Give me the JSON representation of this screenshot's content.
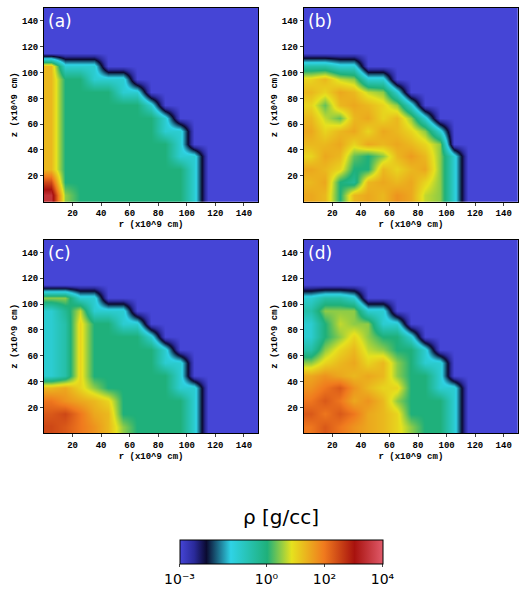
{
  "chart_data": {
    "type": "heatmap",
    "log": true,
    "grid": false,
    "xlabel": "r (x10^9 cm)",
    "ylabel": "z (x10^9 cm)",
    "xlim": [
      0,
      150
    ],
    "ylim": [
      0,
      150
    ],
    "xticks": [
      20,
      40,
      60,
      80,
      100,
      120,
      140
    ],
    "yticks": [
      20,
      40,
      60,
      80,
      100,
      120,
      140
    ],
    "r": [
      5,
      15,
      25,
      35,
      45,
      55,
      65,
      75,
      85,
      95,
      105,
      115,
      125,
      135,
      145
    ],
    "z": [
      5,
      15,
      25,
      35,
      45,
      55,
      65,
      75,
      85,
      95,
      105,
      115,
      125,
      135,
      145
    ],
    "colorbar": {
      "title": "ρ [g/cc]",
      "range": [
        0.001,
        10000
      ],
      "ticks": [
        {
          "value": 0.001,
          "label": "10⁻³"
        },
        {
          "value": 1,
          "label": "10⁰"
        },
        {
          "value": 100,
          "label": "10²"
        },
        {
          "value": 10000,
          "label": "10⁴"
        }
      ]
    },
    "panels": [
      {
        "label": "(a)",
        "cells": [
          [
            3000,
            3,
            1,
            1,
            1,
            1,
            1,
            1,
            1,
            1,
            0.1,
            0.001,
            0.001,
            0.001,
            0.001
          ],
          [
            300,
            1,
            1,
            1,
            1,
            1,
            1,
            1,
            1,
            1,
            0.1,
            0.001,
            0.001,
            0.001,
            0.001
          ],
          [
            20,
            1,
            1,
            1,
            1,
            1,
            1,
            1,
            1,
            1,
            0.1,
            0.001,
            0.001,
            0.001,
            0.001
          ],
          [
            20,
            1,
            1,
            1,
            1,
            1,
            1,
            1,
            1,
            0.1,
            0.1,
            0.001,
            0.001,
            0.001,
            0.001
          ],
          [
            20,
            1,
            1,
            1,
            1,
            1,
            1,
            1,
            1,
            0.1,
            0.001,
            0.001,
            0.001,
            0.001,
            0.001
          ],
          [
            20,
            1,
            1,
            1,
            1,
            1,
            1,
            1,
            0.1,
            0.1,
            0.001,
            0.001,
            0.001,
            0.001,
            0.001
          ],
          [
            20,
            1,
            1,
            1,
            1,
            1,
            1,
            1,
            0.1,
            0.001,
            0.001,
            0.001,
            0.001,
            0.001,
            0.001
          ],
          [
            20,
            1,
            1,
            1,
            1,
            1,
            1,
            0.1,
            0.001,
            0.001,
            0.001,
            0.001,
            0.001,
            0.001,
            0.001
          ],
          [
            20,
            1,
            1,
            1,
            1,
            0.1,
            0.1,
            0.001,
            0.001,
            0.001,
            0.001,
            0.001,
            0.001,
            0.001,
            0.001
          ],
          [
            20,
            1,
            1,
            0.1,
            0.1,
            0.1,
            0.001,
            0.001,
            0.001,
            0.001,
            0.001,
            0.001,
            0.001,
            0.001,
            0.001
          ],
          [
            20,
            0.1,
            0.1,
            0.1,
            0.001,
            0.001,
            0.001,
            0.001,
            0.001,
            0.001,
            0.001,
            0.001,
            0.001,
            0.001,
            0.001
          ],
          [
            0.001,
            0.001,
            0.001,
            0.001,
            0.001,
            0.001,
            0.001,
            0.001,
            0.001,
            0.001,
            0.001,
            0.001,
            0.001,
            0.001,
            0.001
          ],
          [
            0.001,
            0.001,
            0.001,
            0.001,
            0.001,
            0.001,
            0.001,
            0.001,
            0.001,
            0.001,
            0.001,
            0.001,
            0.001,
            0.001,
            0.001
          ],
          [
            0.001,
            0.001,
            0.001,
            0.001,
            0.001,
            0.001,
            0.001,
            0.001,
            0.001,
            0.001,
            0.001,
            0.001,
            0.001,
            0.001,
            0.001
          ],
          [
            0.001,
            0.001,
            0.001,
            0.001,
            0.001,
            0.001,
            0.001,
            0.001,
            0.001,
            0.001,
            0.001,
            0.001,
            0.001,
            0.001,
            0.001
          ]
        ]
      },
      {
        "label": "(b)",
        "cells": [
          [
            30,
            20,
            1,
            20,
            30,
            20,
            50,
            30,
            5,
            3,
            0.1,
            0.001,
            0.001,
            0.001,
            0.001
          ],
          [
            20,
            30,
            1,
            0.5,
            20,
            30,
            20,
            30,
            10,
            3,
            0.1,
            0.001,
            0.001,
            0.001,
            0.001
          ],
          [
            30,
            20,
            10,
            1,
            1,
            20,
            10,
            20,
            30,
            3,
            0.1,
            0.001,
            0.001,
            0.001,
            0.001
          ],
          [
            10,
            30,
            20,
            2,
            1,
            3,
            20,
            40,
            20,
            3,
            0.1,
            0.001,
            0.001,
            0.001,
            0.001
          ],
          [
            20,
            20,
            30,
            10,
            30,
            20,
            30,
            20,
            10,
            3,
            0.001,
            0.001,
            0.001,
            0.001,
            0.001
          ],
          [
            30,
            10,
            20,
            30,
            10,
            30,
            20,
            10,
            3,
            0.1,
            0.001,
            0.001,
            0.001,
            0.001,
            0.001
          ],
          [
            20,
            5,
            2,
            20,
            30,
            10,
            20,
            3,
            0.1,
            0.001,
            0.001,
            0.001,
            0.001,
            0.001,
            0.001
          ],
          [
            10,
            2,
            20,
            30,
            20,
            10,
            3,
            0.1,
            0.001,
            0.001,
            0.001,
            0.001,
            0.001,
            0.001,
            0.001
          ],
          [
            20,
            10,
            30,
            20,
            5,
            3,
            0.1,
            0.001,
            0.001,
            0.001,
            0.001,
            0.001,
            0.001,
            0.001,
            0.001
          ],
          [
            10,
            20,
            5,
            3,
            0.1,
            0.1,
            0.001,
            0.001,
            0.001,
            0.001,
            0.001,
            0.001,
            0.001,
            0.001,
            0.001
          ],
          [
            0.3,
            0.3,
            0.1,
            0.1,
            0.001,
            0.001,
            0.001,
            0.001,
            0.001,
            0.001,
            0.001,
            0.001,
            0.001,
            0.001,
            0.001
          ],
          [
            0.001,
            0.001,
            0.001,
            0.001,
            0.001,
            0.001,
            0.001,
            0.001,
            0.001,
            0.001,
            0.001,
            0.001,
            0.001,
            0.001,
            0.001
          ],
          [
            0.001,
            0.001,
            0.001,
            0.001,
            0.001,
            0.001,
            0.001,
            0.001,
            0.001,
            0.001,
            0.001,
            0.001,
            0.001,
            0.001,
            0.001
          ],
          [
            0.001,
            0.001,
            0.001,
            0.001,
            0.001,
            0.001,
            0.001,
            0.001,
            0.001,
            0.001,
            0.001,
            0.001,
            0.001,
            0.001,
            0.001
          ],
          [
            0.001,
            0.001,
            0.001,
            0.001,
            0.001,
            0.001,
            0.001,
            0.001,
            0.001,
            0.001,
            0.001,
            0.001,
            0.001,
            0.001,
            0.001
          ]
        ]
      },
      {
        "label": "(c)",
        "cells": [
          [
            300,
            200,
            100,
            50,
            20,
            3,
            1,
            1,
            1,
            1,
            0.1,
            0.001,
            0.001,
            0.001,
            0.001
          ],
          [
            200,
            300,
            100,
            30,
            20,
            1,
            1,
            1,
            1,
            1,
            0.1,
            0.001,
            0.001,
            0.001,
            0.001
          ],
          [
            100,
            50,
            30,
            20,
            10,
            1,
            1,
            1,
            1,
            1,
            0.1,
            0.001,
            0.001,
            0.001,
            0.001
          ],
          [
            20,
            30,
            10,
            3,
            1,
            1,
            1,
            1,
            1,
            0.1,
            0.1,
            0.001,
            0.001,
            0.001,
            0.001
          ],
          [
            0.1,
            0.3,
            10,
            1,
            1,
            1,
            1,
            1,
            1,
            0.1,
            0.001,
            0.001,
            0.001,
            0.001,
            0.001
          ],
          [
            0.1,
            0.3,
            10,
            1,
            1,
            1,
            1,
            1,
            0.1,
            0.1,
            0.001,
            0.001,
            0.001,
            0.001,
            0.001
          ],
          [
            0.1,
            0.3,
            10,
            1,
            1,
            1,
            1,
            1,
            0.1,
            0.001,
            0.001,
            0.001,
            0.001,
            0.001,
            0.001
          ],
          [
            0.1,
            0.3,
            10,
            1,
            1,
            1,
            1,
            0.1,
            0.001,
            0.001,
            0.001,
            0.001,
            0.001,
            0.001,
            0.001
          ],
          [
            0.1,
            0.3,
            10,
            1,
            1,
            0.1,
            0.1,
            0.001,
            0.001,
            0.001,
            0.001,
            0.001,
            0.001,
            0.001,
            0.001
          ],
          [
            0.1,
            0.5,
            5,
            0.1,
            0.1,
            0.1,
            0.001,
            0.001,
            0.001,
            0.001,
            0.001,
            0.001,
            0.001,
            0.001,
            0.001
          ],
          [
            3,
            3,
            0.1,
            0.1,
            0.001,
            0.001,
            0.001,
            0.001,
            0.001,
            0.001,
            0.001,
            0.001,
            0.001,
            0.001,
            0.001
          ],
          [
            0.001,
            0.001,
            0.001,
            0.001,
            0.001,
            0.001,
            0.001,
            0.001,
            0.001,
            0.001,
            0.001,
            0.001,
            0.001,
            0.001,
            0.001
          ],
          [
            0.001,
            0.001,
            0.001,
            0.001,
            0.001,
            0.001,
            0.001,
            0.001,
            0.001,
            0.001,
            0.001,
            0.001,
            0.001,
            0.001,
            0.001
          ],
          [
            0.001,
            0.001,
            0.001,
            0.001,
            0.001,
            0.001,
            0.001,
            0.001,
            0.001,
            0.001,
            0.001,
            0.001,
            0.001,
            0.001,
            0.001
          ],
          [
            0.001,
            0.001,
            0.001,
            0.001,
            0.001,
            0.001,
            0.001,
            0.001,
            0.001,
            0.001,
            0.001,
            0.001,
            0.001,
            0.001,
            0.001
          ]
        ]
      },
      {
        "label": "(d)",
        "cells": [
          [
            100,
            200,
            100,
            50,
            30,
            20,
            10,
            3,
            1,
            1,
            0.1,
            0.001,
            0.001,
            0.001,
            0.001
          ],
          [
            200,
            100,
            200,
            100,
            30,
            20,
            10,
            1,
            1,
            1,
            0.1,
            0.001,
            0.001,
            0.001,
            0.001
          ],
          [
            100,
            200,
            100,
            30,
            50,
            20,
            3,
            1,
            1,
            1,
            0.1,
            0.001,
            0.001,
            0.001,
            0.001
          ],
          [
            50,
            100,
            200,
            50,
            20,
            10,
            10,
            1,
            1,
            0.1,
            0.1,
            0.001,
            0.001,
            0.001,
            0.001
          ],
          [
            30,
            50,
            30,
            20,
            30,
            20,
            3,
            1,
            1,
            0.1,
            0.001,
            0.001,
            0.001,
            0.001,
            0.001
          ],
          [
            3,
            10,
            20,
            30,
            10,
            20,
            3,
            1,
            0.1,
            0.1,
            0.001,
            0.001,
            0.001,
            0.001,
            0.001
          ],
          [
            0.3,
            3,
            10,
            20,
            5,
            3,
            1,
            1,
            0.1,
            0.001,
            0.001,
            0.001,
            0.001,
            0.001,
            0.001
          ],
          [
            0.1,
            1,
            3,
            10,
            3,
            1,
            1,
            0.1,
            0.001,
            0.001,
            0.001,
            0.001,
            0.001,
            0.001,
            0.001
          ],
          [
            0.1,
            1,
            5,
            3,
            3,
            0.1,
            0.1,
            0.001,
            0.001,
            0.001,
            0.001,
            0.001,
            0.001,
            0.001,
            0.001
          ],
          [
            0.3,
            3,
            3,
            3,
            0.1,
            0.1,
            0.001,
            0.001,
            0.001,
            0.001,
            0.001,
            0.001,
            0.001,
            0.001,
            0.001
          ],
          [
            0.1,
            0.3,
            0.3,
            0.1,
            0.001,
            0.001,
            0.001,
            0.001,
            0.001,
            0.001,
            0.001,
            0.001,
            0.001,
            0.001,
            0.001
          ],
          [
            0.001,
            0.001,
            0.001,
            0.001,
            0.001,
            0.001,
            0.001,
            0.001,
            0.001,
            0.001,
            0.001,
            0.001,
            0.001,
            0.001,
            0.001
          ],
          [
            0.001,
            0.001,
            0.001,
            0.001,
            0.001,
            0.001,
            0.001,
            0.001,
            0.001,
            0.001,
            0.001,
            0.001,
            0.001,
            0.001,
            0.001
          ],
          [
            0.001,
            0.001,
            0.001,
            0.001,
            0.001,
            0.001,
            0.001,
            0.001,
            0.001,
            0.001,
            0.001,
            0.001,
            0.001,
            0.001,
            0.001
          ],
          [
            0.001,
            0.001,
            0.001,
            0.001,
            0.001,
            0.001,
            0.001,
            0.001,
            0.001,
            0.001,
            0.001,
            0.001,
            0.001,
            0.001,
            0.001
          ]
        ]
      }
    ]
  }
}
